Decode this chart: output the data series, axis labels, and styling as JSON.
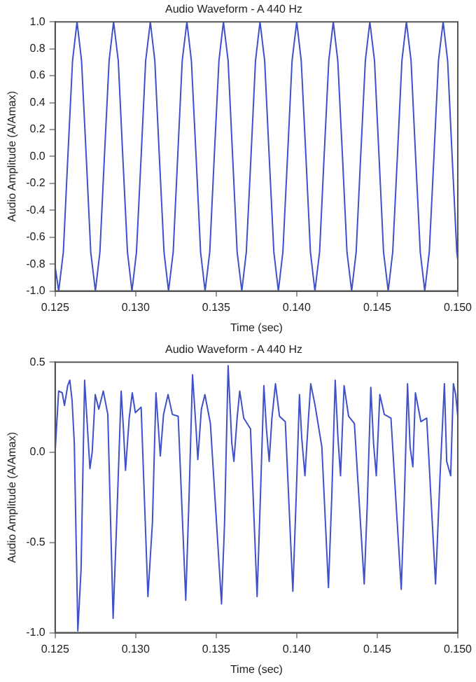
{
  "chart_data": [
    {
      "type": "line",
      "title": "Audio Waveform - A 440 Hz",
      "xlabel": "Time (sec)",
      "ylabel": "Audio Amplitude (A/Amax)",
      "grid": false,
      "legend": false,
      "xlim": [
        0.125,
        0.15
      ],
      "xticks": [
        {
          "value": 0.125,
          "label": "0.125"
        },
        {
          "value": 0.13,
          "label": "0.130"
        },
        {
          "value": 0.135,
          "label": "0.135"
        },
        {
          "value": 0.14,
          "label": "0.140"
        },
        {
          "value": 0.145,
          "label": "0.145"
        },
        {
          "value": 0.15,
          "label": "0.150"
        }
      ],
      "ylim": [
        -1,
        1
      ],
      "yticks": [
        {
          "value": -1,
          "label": "-1.0"
        },
        {
          "value": -0.8,
          "label": "-0.8"
        },
        {
          "value": -0.6,
          "label": "-0.6"
        },
        {
          "value": -0.4,
          "label": "-0.4"
        },
        {
          "value": -0.2,
          "label": "-0.2"
        },
        {
          "value": 0,
          "label": "0.0"
        },
        {
          "value": 0.2,
          "label": "0.2"
        },
        {
          "value": 0.4,
          "label": "0.4"
        },
        {
          "value": 0.6,
          "label": "0.6"
        },
        {
          "value": 0.8,
          "label": "0.8"
        },
        {
          "value": 1,
          "label": "1.0"
        }
      ],
      "series": [
        {
          "color": "#3f51c8",
          "x": [
            0.125,
            0.12522,
            0.12551,
            0.12579,
            0.12608,
            0.12636,
            0.12664,
            0.12693,
            0.12721,
            0.1275,
            0.12778,
            0.12806,
            0.12835,
            0.12863,
            0.12892,
            0.1292,
            0.12949,
            0.12977,
            0.13005,
            0.13034,
            0.13062,
            0.13091,
            0.13119,
            0.13147,
            0.13176,
            0.13204,
            0.13233,
            0.13261,
            0.13289,
            0.13318,
            0.13346,
            0.13375,
            0.13403,
            0.13431,
            0.1346,
            0.13488,
            0.13517,
            0.13545,
            0.13574,
            0.13602,
            0.1363,
            0.13659,
            0.13687,
            0.13716,
            0.13744,
            0.13772,
            0.13801,
            0.13829,
            0.13858,
            0.13886,
            0.13914,
            0.13943,
            0.13971,
            0.14,
            0.14028,
            0.14057,
            0.14085,
            0.14113,
            0.14142,
            0.1417,
            0.14199,
            0.14227,
            0.14255,
            0.14284,
            0.14312,
            0.14341,
            0.14369,
            0.14397,
            0.14426,
            0.14454,
            0.14483,
            0.14511,
            0.14539,
            0.14568,
            0.14596,
            0.14625,
            0.14653,
            0.14681,
            0.1471,
            0.14738,
            0.14767,
            0.14795,
            0.14823,
            0.14852,
            0.1488,
            0.14909,
            0.14937,
            0.14965,
            0.14994,
            0.15
          ],
          "values": [
            -0.82,
            -1,
            -0.71,
            0,
            0.71,
            1,
            0.71,
            0,
            -0.71,
            -1,
            -0.71,
            0,
            0.71,
            1,
            0.71,
            0,
            -0.71,
            -1,
            -0.71,
            0,
            0.71,
            1,
            0.71,
            0,
            -0.71,
            -1,
            -0.71,
            0,
            0.71,
            1,
            0.71,
            0,
            -0.71,
            -1,
            -0.71,
            0,
            0.71,
            1,
            0.71,
            0,
            -0.71,
            -1,
            -0.71,
            0,
            0.71,
            1,
            0.71,
            0,
            -0.71,
            -1,
            -0.71,
            0,
            0.71,
            1,
            0.71,
            0,
            -0.71,
            -1,
            -0.71,
            0,
            0.71,
            1,
            0.71,
            0,
            -0.71,
            -1,
            -0.71,
            0,
            0.71,
            1,
            0.71,
            0,
            -0.71,
            -1,
            -0.71,
            0,
            0.71,
            1,
            0.71,
            0,
            -0.71,
            -1,
            -0.71,
            0,
            0.71,
            1,
            0.71,
            0,
            -0.71,
            -0.77
          ]
        }
      ]
    },
    {
      "type": "line",
      "title": "Audio Waveform - A 440 Hz",
      "xlabel": "Time (sec)",
      "ylabel": "Audio Amplitude (A/Amax)",
      "grid": false,
      "legend": false,
      "xlim": [
        0.125,
        0.15
      ],
      "xticks": [
        {
          "value": 0.125,
          "label": "0.125"
        },
        {
          "value": 0.13,
          "label": "0.130"
        },
        {
          "value": 0.135,
          "label": "0.135"
        },
        {
          "value": 0.14,
          "label": "0.140"
        },
        {
          "value": 0.145,
          "label": "0.145"
        },
        {
          "value": 0.15,
          "label": "0.150"
        }
      ],
      "ylim": [
        -1,
        0.5
      ],
      "yticks": [
        {
          "value": -1,
          "label": "-1.0"
        },
        {
          "value": -0.5,
          "label": "-0.5"
        },
        {
          "value": 0,
          "label": "0.0"
        },
        {
          "value": 0.5,
          "label": "0.5"
        }
      ],
      "series": [
        {
          "color": "#3f51c8",
          "x": [
            0.125,
            0.12508,
            0.12522,
            0.12544,
            0.12558,
            0.12578,
            0.12591,
            0.12605,
            0.12619,
            0.12641,
            0.12661,
            0.12683,
            0.12697,
            0.12716,
            0.1273,
            0.12749,
            0.12771,
            0.12799,
            0.12827,
            0.1286,
            0.12882,
            0.1291,
            0.12924,
            0.12937,
            0.1296,
            0.12979,
            0.12998,
            0.13034,
            0.13076,
            0.13104,
            0.13126,
            0.13137,
            0.13153,
            0.13173,
            0.13201,
            0.13228,
            0.13264,
            0.13311,
            0.13331,
            0.13353,
            0.13375,
            0.13386,
            0.13408,
            0.1343,
            0.13464,
            0.13533,
            0.13552,
            0.13574,
            0.13597,
            0.1361,
            0.1363,
            0.13646,
            0.13671,
            0.13713,
            0.13754,
            0.13774,
            0.13796,
            0.13812,
            0.13829,
            0.13846,
            0.13868,
            0.13893,
            0.13929,
            0.13976,
            0.13995,
            0.14017,
            0.14031,
            0.14051,
            0.14073,
            0.14087,
            0.14114,
            0.14156,
            0.14197,
            0.14217,
            0.14239,
            0.14256,
            0.14272,
            0.14294,
            0.14322,
            0.14358,
            0.14419,
            0.14438,
            0.1446,
            0.14477,
            0.14494,
            0.14516,
            0.14544,
            0.14585,
            0.14649,
            0.14668,
            0.14688,
            0.14704,
            0.14721,
            0.14737,
            0.14771,
            0.14807,
            0.14862,
            0.1489,
            0.14917,
            0.14931,
            0.14956,
            0.14973,
            0.14987,
            0.15
          ],
          "values": [
            0,
            0.13,
            0.34,
            0.33,
            0.26,
            0.37,
            0.4,
            0.29,
            0.05,
            -0.99,
            -0.65,
            0.4,
            0.19,
            -0.09,
            0,
            0.32,
            0.24,
            0.34,
            0.21,
            -0.92,
            -0.39,
            0.34,
            0.13,
            -0.1,
            0.19,
            0.33,
            0.22,
            0.25,
            -0.8,
            -0.39,
            0.33,
            0.19,
            -0.02,
            0.21,
            0.32,
            0.21,
            0.2,
            -0.82,
            -0.26,
            0.43,
            0.13,
            -0.04,
            0.24,
            0.32,
            0.16,
            -0.84,
            -0.39,
            0.48,
            0.05,
            -0.05,
            0.19,
            0.34,
            0.19,
            0.13,
            -0.8,
            -0.26,
            0.37,
            0.13,
            -0.05,
            0.19,
            0.38,
            0.2,
            0.17,
            -0.77,
            -0.29,
            0.32,
            0.08,
            -0.13,
            0.19,
            0.38,
            0.26,
            0.03,
            -0.75,
            -0.26,
            0.4,
            0.08,
            -0.13,
            0.37,
            0.2,
            0.16,
            -0.73,
            -0.29,
            0.36,
            0.05,
            -0.13,
            0.32,
            0.21,
            0.19,
            -0.76,
            -0.26,
            0.38,
            0.03,
            -0.08,
            0.33,
            0.17,
            0.19,
            -0.73,
            -0.13,
            0.38,
            -0.05,
            -0.13,
            0.38,
            0.32,
            0.2
          ]
        }
      ]
    }
  ]
}
